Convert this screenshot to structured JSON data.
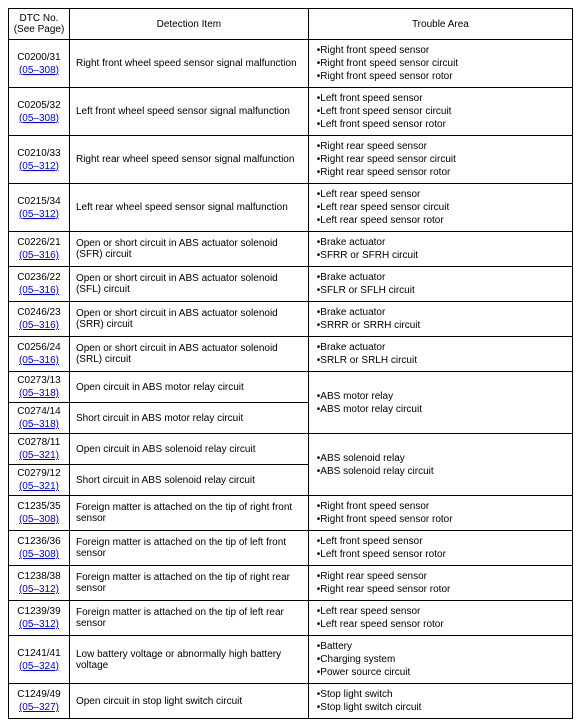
{
  "headers": {
    "dtc": "DTC No.",
    "seePage": "(See Page)",
    "detection": "Detection Item",
    "trouble": "Trouble Area"
  },
  "rows": [
    {
      "code": "C0200/31",
      "page": "(05–308)",
      "detection": "Right front wheel speed sensor signal malfunction",
      "trouble": [
        "Right front speed sensor",
        "Right front speed sensor circuit",
        "Right front speed sensor rotor"
      ]
    },
    {
      "code": "C0205/32",
      "page": "(05–308)",
      "detection": "Left front wheel speed sensor signal malfunction",
      "trouble": [
        "Left front speed sensor",
        "Left front speed sensor circuit",
        "Left front speed sensor rotor"
      ]
    },
    {
      "code": "C0210/33",
      "page": "(05–312)",
      "detection": "Right rear wheel speed sensor signal malfunction",
      "trouble": [
        "Right rear speed sensor",
        "Right rear speed sensor circuit",
        "Right rear speed sensor rotor"
      ]
    },
    {
      "code": "C0215/34",
      "page": "(05–312)",
      "detection": "Left rear wheel speed sensor signal malfunction",
      "trouble": [
        "Left rear speed sensor",
        "Left rear speed sensor circuit",
        "Left rear speed sensor rotor"
      ]
    },
    {
      "code": "C0226/21",
      "page": "(05–316)",
      "detection": "Open or short circuit in ABS actuator solenoid (SFR) circuit",
      "trouble": [
        "Brake actuator",
        "SFRR or SFRH circuit"
      ]
    },
    {
      "code": "C0236/22",
      "page": "(05–316)",
      "detection": "Open or short circuit in ABS actuator solenoid (SFL) circuit",
      "trouble": [
        "Brake actuator",
        "SFLR or SFLH circuit"
      ]
    },
    {
      "code": "C0246/23",
      "page": "(05–316)",
      "detection": "Open or short circuit in ABS actuator solenoid (SRR) circuit",
      "trouble": [
        "Brake actuator",
        "SRRR or SRRH circuit"
      ]
    },
    {
      "code": "C0256/24",
      "page": "(05–316)",
      "detection": "Open or short circuit in ABS actuator solenoid (SRL) circuit",
      "trouble": [
        "Brake actuator",
        "SRLR or SRLH circuit"
      ]
    },
    {
      "code": "C0273/13",
      "page": "(05–318)",
      "detection": "Open circuit in ABS motor relay circuit",
      "troubleMergeGroup": "g1"
    },
    {
      "code": "C0274/14",
      "page": "(05–318)",
      "detection": "Short circuit in ABS motor relay circuit",
      "troubleMergeGroup": "g1"
    },
    {
      "code": "C0278/11",
      "page": "(05–321)",
      "detection": "Open circuit in ABS solenoid relay circuit",
      "troubleMergeGroup": "g2"
    },
    {
      "code": "C0279/12",
      "page": "(05–321)",
      "detection": "Short circuit in ABS solenoid relay circuit",
      "troubleMergeGroup": "g2"
    },
    {
      "code": "C1235/35",
      "page": "(05–308)",
      "detection": "Foreign matter is attached on the tip of right front sensor",
      "trouble": [
        "Right front speed sensor",
        "Right front speed sensor rotor"
      ]
    },
    {
      "code": "C1236/36",
      "page": "(05–308)",
      "detection": "Foreign matter is attached on the tip of left front sensor",
      "trouble": [
        "Left front speed sensor",
        "Left front speed sensor rotor"
      ]
    },
    {
      "code": "C1238/38",
      "page": "(05–312)",
      "detection": "Foreign matter is attached on the tip of right rear sensor",
      "trouble": [
        "Right rear speed sensor",
        "Right rear speed sensor rotor"
      ]
    },
    {
      "code": "C1239/39",
      "page": "(05–312)",
      "detection": "Foreign matter is attached on the tip of left rear sensor",
      "trouble": [
        "Left rear speed sensor",
        "Left rear speed sensor rotor"
      ]
    },
    {
      "code": "C1241/41",
      "page": "(05–324)",
      "detection": "Low battery voltage or abnormally high battery voltage",
      "trouble": [
        "Battery",
        "Charging system",
        "Power source circuit"
      ]
    },
    {
      "code": "C1249/49",
      "page": "(05–327)",
      "detection": "Open circuit in stop light switch circuit",
      "trouble": [
        "Stop light switch",
        "Stop light switch circuit"
      ]
    }
  ],
  "mergedTrouble": {
    "g1": [
      "ABS motor relay",
      "ABS motor relay circuit"
    ],
    "g2": [
      "ABS solenoid relay",
      "ABS solenoid relay circuit"
    ]
  }
}
